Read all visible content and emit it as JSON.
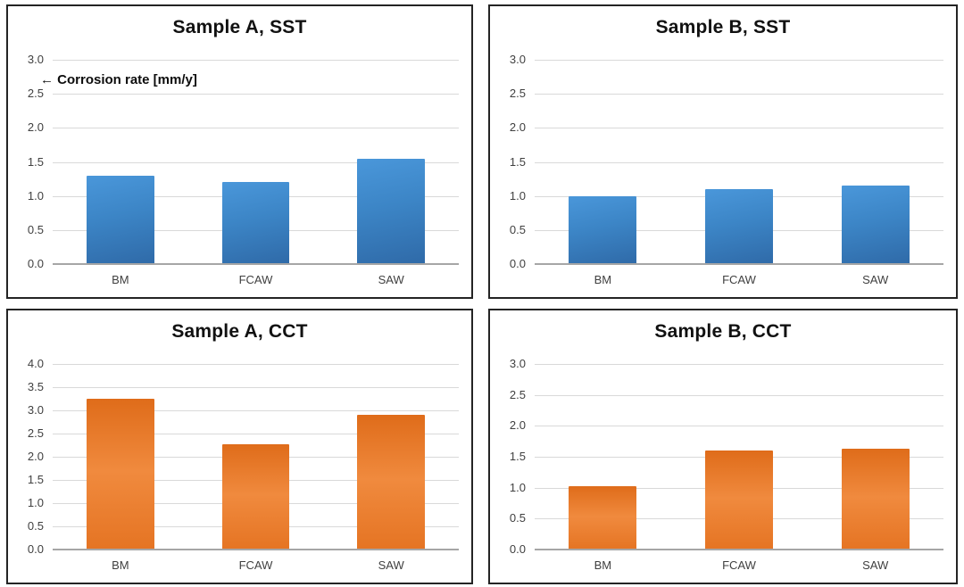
{
  "figure": {
    "description_annotation": "← Corrosion rate [mm/y]"
  },
  "colors": {
    "bar_blue_top": "#4a97da",
    "bar_blue_mid": "#3c85c6",
    "bar_blue_bottom": "#2f6aa8",
    "bar_orange_top": "#df6c1a",
    "bar_orange_mid": "#f08a3e",
    "bar_orange_bottom": "#e57423",
    "gridline": "#d9d9d9",
    "axis_line": "#a6a6a6",
    "tick_text": "#404040",
    "title_text": "#111111",
    "panel_border": "#242424",
    "background": "#ffffff"
  },
  "chart_data": [
    {
      "type": "bar",
      "title": "Sample A, SST",
      "categories": [
        "BM",
        "FCAW",
        "SAW"
      ],
      "values": [
        1.3,
        1.2,
        1.54
      ],
      "ylabel_annotation": "← Corrosion rate [mm/y]",
      "ylim": [
        0,
        3.0
      ],
      "ytick_step": 0.5,
      "ytick_labels": [
        "0.0",
        "0.5",
        "1.0",
        "1.5",
        "2.0",
        "2.5",
        "3.0"
      ],
      "bar_palette": "blue",
      "grid": true,
      "legend": "none"
    },
    {
      "type": "bar",
      "title": "Sample B, SST",
      "categories": [
        "BM",
        "FCAW",
        "SAW"
      ],
      "values": [
        1.0,
        1.1,
        1.15
      ],
      "ylim": [
        0,
        3.0
      ],
      "ytick_step": 0.5,
      "ytick_labels": [
        "0.0",
        "0.5",
        "1.0",
        "1.5",
        "2.0",
        "2.5",
        "3.0"
      ],
      "bar_palette": "blue",
      "grid": true,
      "legend": "none"
    },
    {
      "type": "bar",
      "title": "Sample A, CCT",
      "categories": [
        "BM",
        "FCAW",
        "SAW"
      ],
      "values": [
        3.25,
        2.27,
        2.9
      ],
      "ylim": [
        0,
        4.0
      ],
      "ytick_step": 0.5,
      "ytick_labels": [
        "0.0",
        "0.5",
        "1.0",
        "1.5",
        "2.0",
        "2.5",
        "3.0",
        "3.5",
        "4.0"
      ],
      "bar_palette": "orange",
      "grid": true,
      "legend": "none"
    },
    {
      "type": "bar",
      "title": "Sample B, CCT",
      "categories": [
        "BM",
        "FCAW",
        "SAW"
      ],
      "values": [
        1.03,
        1.6,
        1.63
      ],
      "ylim": [
        0,
        3.0
      ],
      "ytick_step": 0.5,
      "ytick_labels": [
        "0.0",
        "0.5",
        "1.0",
        "1.5",
        "2.0",
        "2.5",
        "3.0"
      ],
      "bar_palette": "orange",
      "grid": true,
      "legend": "none"
    }
  ]
}
